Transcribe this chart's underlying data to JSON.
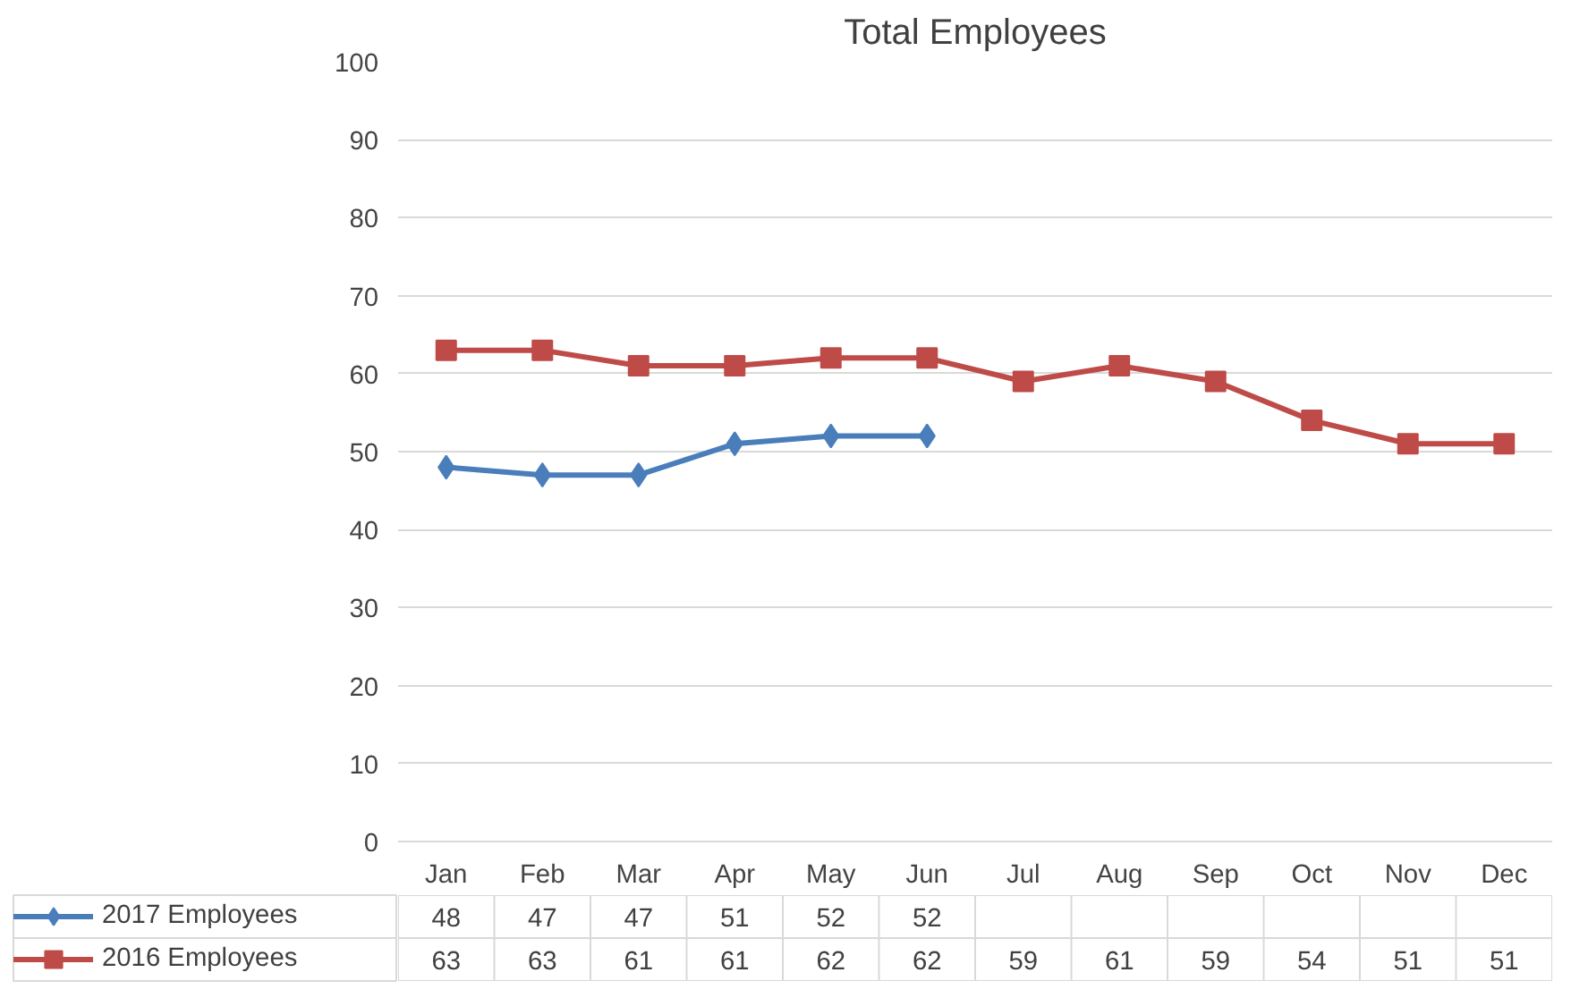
{
  "chart_data": {
    "type": "line",
    "title": "Total Employees",
    "categories": [
      "Jan",
      "Feb",
      "Mar",
      "Apr",
      "May",
      "Jun",
      "Jul",
      "Aug",
      "Sep",
      "Oct",
      "Nov",
      "Dec"
    ],
    "series": [
      {
        "name": "2017 Employees",
        "color": "#4a7ebb",
        "marker": "diamond",
        "values": [
          48,
          47,
          47,
          51,
          52,
          52,
          null,
          null,
          null,
          null,
          null,
          null
        ]
      },
      {
        "name": "2016 Employees",
        "color": "#be4b48",
        "marker": "square",
        "values": [
          63,
          63,
          61,
          61,
          62,
          62,
          59,
          61,
          59,
          54,
          51,
          51
        ]
      }
    ],
    "ylim": [
      0,
      100
    ],
    "yticks": [
      0,
      10,
      20,
      30,
      40,
      50,
      60,
      70,
      80,
      90,
      100
    ],
    "grid": "y",
    "legend": "bottom",
    "data_labels": true,
    "line_style": "solid"
  }
}
